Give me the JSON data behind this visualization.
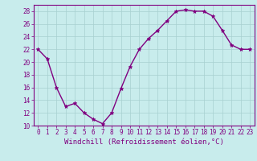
{
  "x": [
    0,
    1,
    2,
    3,
    4,
    5,
    6,
    7,
    8,
    9,
    10,
    11,
    12,
    13,
    14,
    15,
    16,
    17,
    18,
    19,
    20,
    21,
    22,
    23
  ],
  "y": [
    22,
    20.5,
    16,
    13,
    13.5,
    12,
    11,
    10.3,
    12,
    15.8,
    19.3,
    22,
    23.7,
    25,
    26.5,
    28,
    28.2,
    28,
    28,
    27.2,
    25,
    22.7,
    22,
    22
  ],
  "line_color": "#800080",
  "marker": "*",
  "marker_color": "#800080",
  "bg_color": "#c8ecec",
  "grid_color": "#a8d0d0",
  "xlabel": "Windchill (Refroidissement éolien,°C)",
  "ylim": [
    10,
    29
  ],
  "xlim": [
    -0.5,
    23.5
  ],
  "yticks": [
    10,
    12,
    14,
    16,
    18,
    20,
    22,
    24,
    26,
    28
  ],
  "xticks": [
    0,
    1,
    2,
    3,
    4,
    5,
    6,
    7,
    8,
    9,
    10,
    11,
    12,
    13,
    14,
    15,
    16,
    17,
    18,
    19,
    20,
    21,
    22,
    23
  ],
  "tick_fontsize": 5.5,
  "xlabel_fontsize": 6.5,
  "line_width": 1.0,
  "marker_size": 3.5,
  "tick_color": "#800080",
  "label_color": "#800080"
}
